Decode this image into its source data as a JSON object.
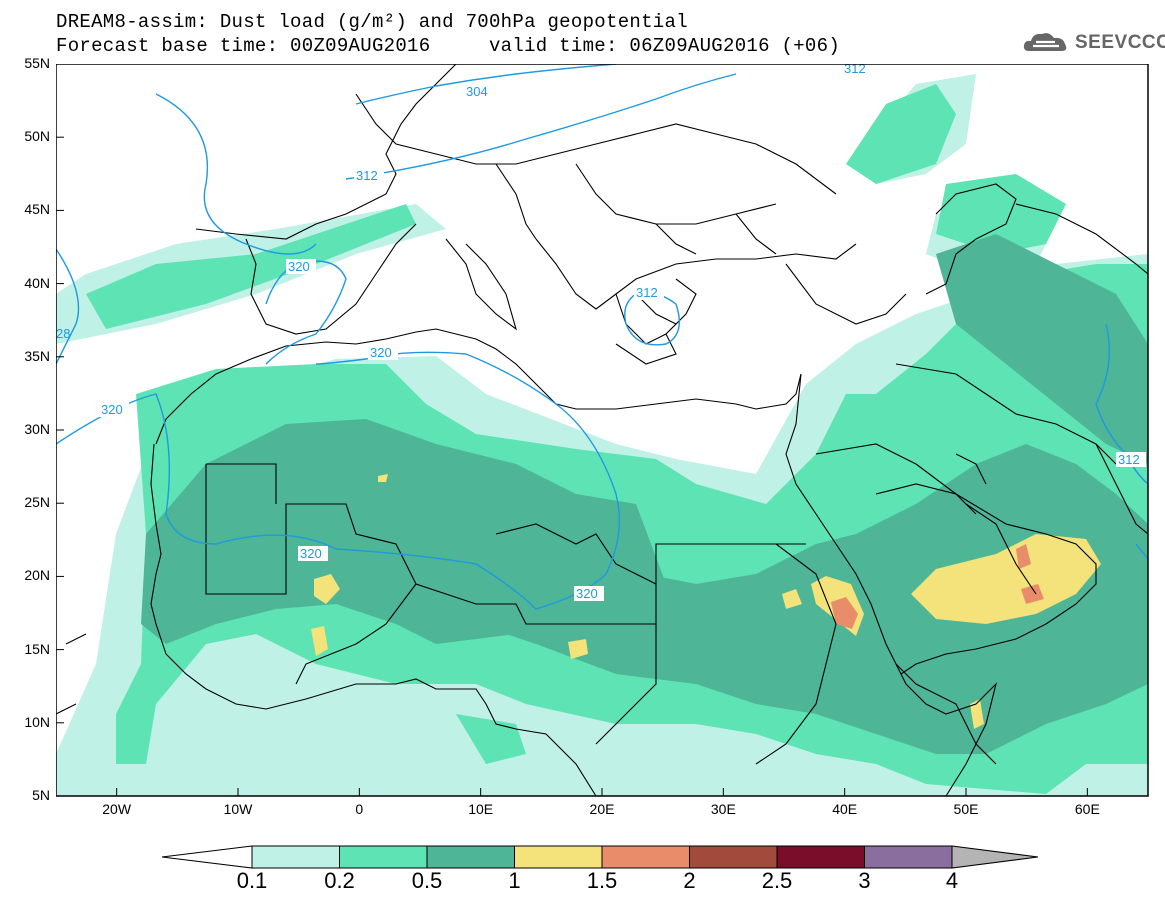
{
  "header": {
    "line1": "DREAM8-assim: Dust load (g/m²) and 700hPa geopotential",
    "line2": "Forecast base time: 00Z09AUG2016     valid time: 06Z09AUG2016 (+06)"
  },
  "logo": {
    "text": "SEEVCCC",
    "icon": "cloud-logo-icon"
  },
  "map": {
    "lon_range": [
      -25,
      65
    ],
    "lat_range": [
      5,
      55
    ],
    "x_ticks": [
      "20W",
      "10W",
      "0",
      "10E",
      "20E",
      "30E",
      "40E",
      "50E",
      "60E"
    ],
    "y_ticks": [
      "55N",
      "50N",
      "45N",
      "40N",
      "35N",
      "30N",
      "25N",
      "20N",
      "15N",
      "10N",
      "5N"
    ],
    "contour_labels": [
      "312",
      "304",
      "312",
      "320",
      "312",
      "320",
      "320",
      "320",
      "320",
      "312",
      "28"
    ]
  },
  "colorbar": {
    "levels": [
      "0.1",
      "0.2",
      "0.5",
      "1",
      "1.5",
      "2",
      "2.5",
      "3",
      "4"
    ],
    "colors": [
      "#ffffff",
      "#bff1e6",
      "#5de3b4",
      "#4eb596",
      "#f4e27a",
      "#e88c6a",
      "#a24a3c",
      "#7a0e2a",
      "#8a6e9e",
      "#b4b4b4"
    ]
  }
}
